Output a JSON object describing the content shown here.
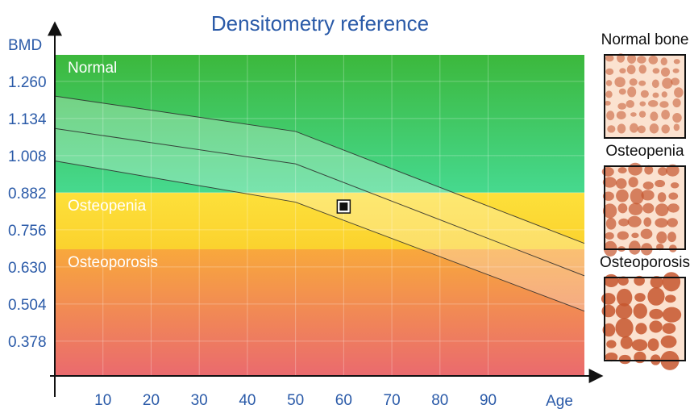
{
  "chart_data": {
    "type": "area",
    "title": "Densitometry reference",
    "xlabel": "Age",
    "ylabel": "BMD",
    "x_ticks": [
      10,
      20,
      30,
      40,
      50,
      60,
      70,
      80,
      90
    ],
    "y_ticks": [
      "1.260",
      "1.134",
      "1.008",
      "0.882",
      "0.756",
      "0.630",
      "0.504",
      "0.378"
    ],
    "xlim": [
      0,
      110
    ],
    "ylim": [
      0.26,
      1.35
    ],
    "grid": true,
    "zones": [
      {
        "label": "Normal",
        "from": 0.882,
        "to": 1.35,
        "color_top": "#3cb83c",
        "color_bottom": "#46d98f"
      },
      {
        "label": "Osteopenia",
        "from": 0.69,
        "to": 0.882,
        "color_top": "#fde03a",
        "color_bottom": "#fbd22e"
      },
      {
        "label": "Osteoporosis",
        "from": 0.26,
        "to": 0.69,
        "color_top": "#f8a83c",
        "color_bottom": "#ea6a6e"
      }
    ],
    "series": [
      {
        "values": [
          [
            0,
            1.21
          ],
          [
            50,
            1.09
          ],
          [
            110,
            0.71
          ]
        ]
      },
      {
        "values": [
          [
            0,
            1.1
          ],
          [
            50,
            0.98
          ],
          [
            110,
            0.6
          ]
        ]
      },
      {
        "values": [
          [
            0,
            0.99
          ],
          [
            50,
            0.85
          ],
          [
            110,
            0.48
          ]
        ]
      }
    ],
    "marker": {
      "x": 60,
      "y": 0.835
    }
  },
  "bone_panels": [
    {
      "label": "Normal bone",
      "kind": "normal"
    },
    {
      "label": "Osteopenia",
      "kind": "osteopenia"
    },
    {
      "label": "Osteoporosis",
      "kind": "osteoporosis"
    }
  ],
  "colors": {
    "axis": "#111111",
    "text_blue": "#2a5aa8",
    "band_fill": "#ffffff",
    "bone_bg": "#fbe2d0",
    "bone_hole": "#c5562e"
  }
}
